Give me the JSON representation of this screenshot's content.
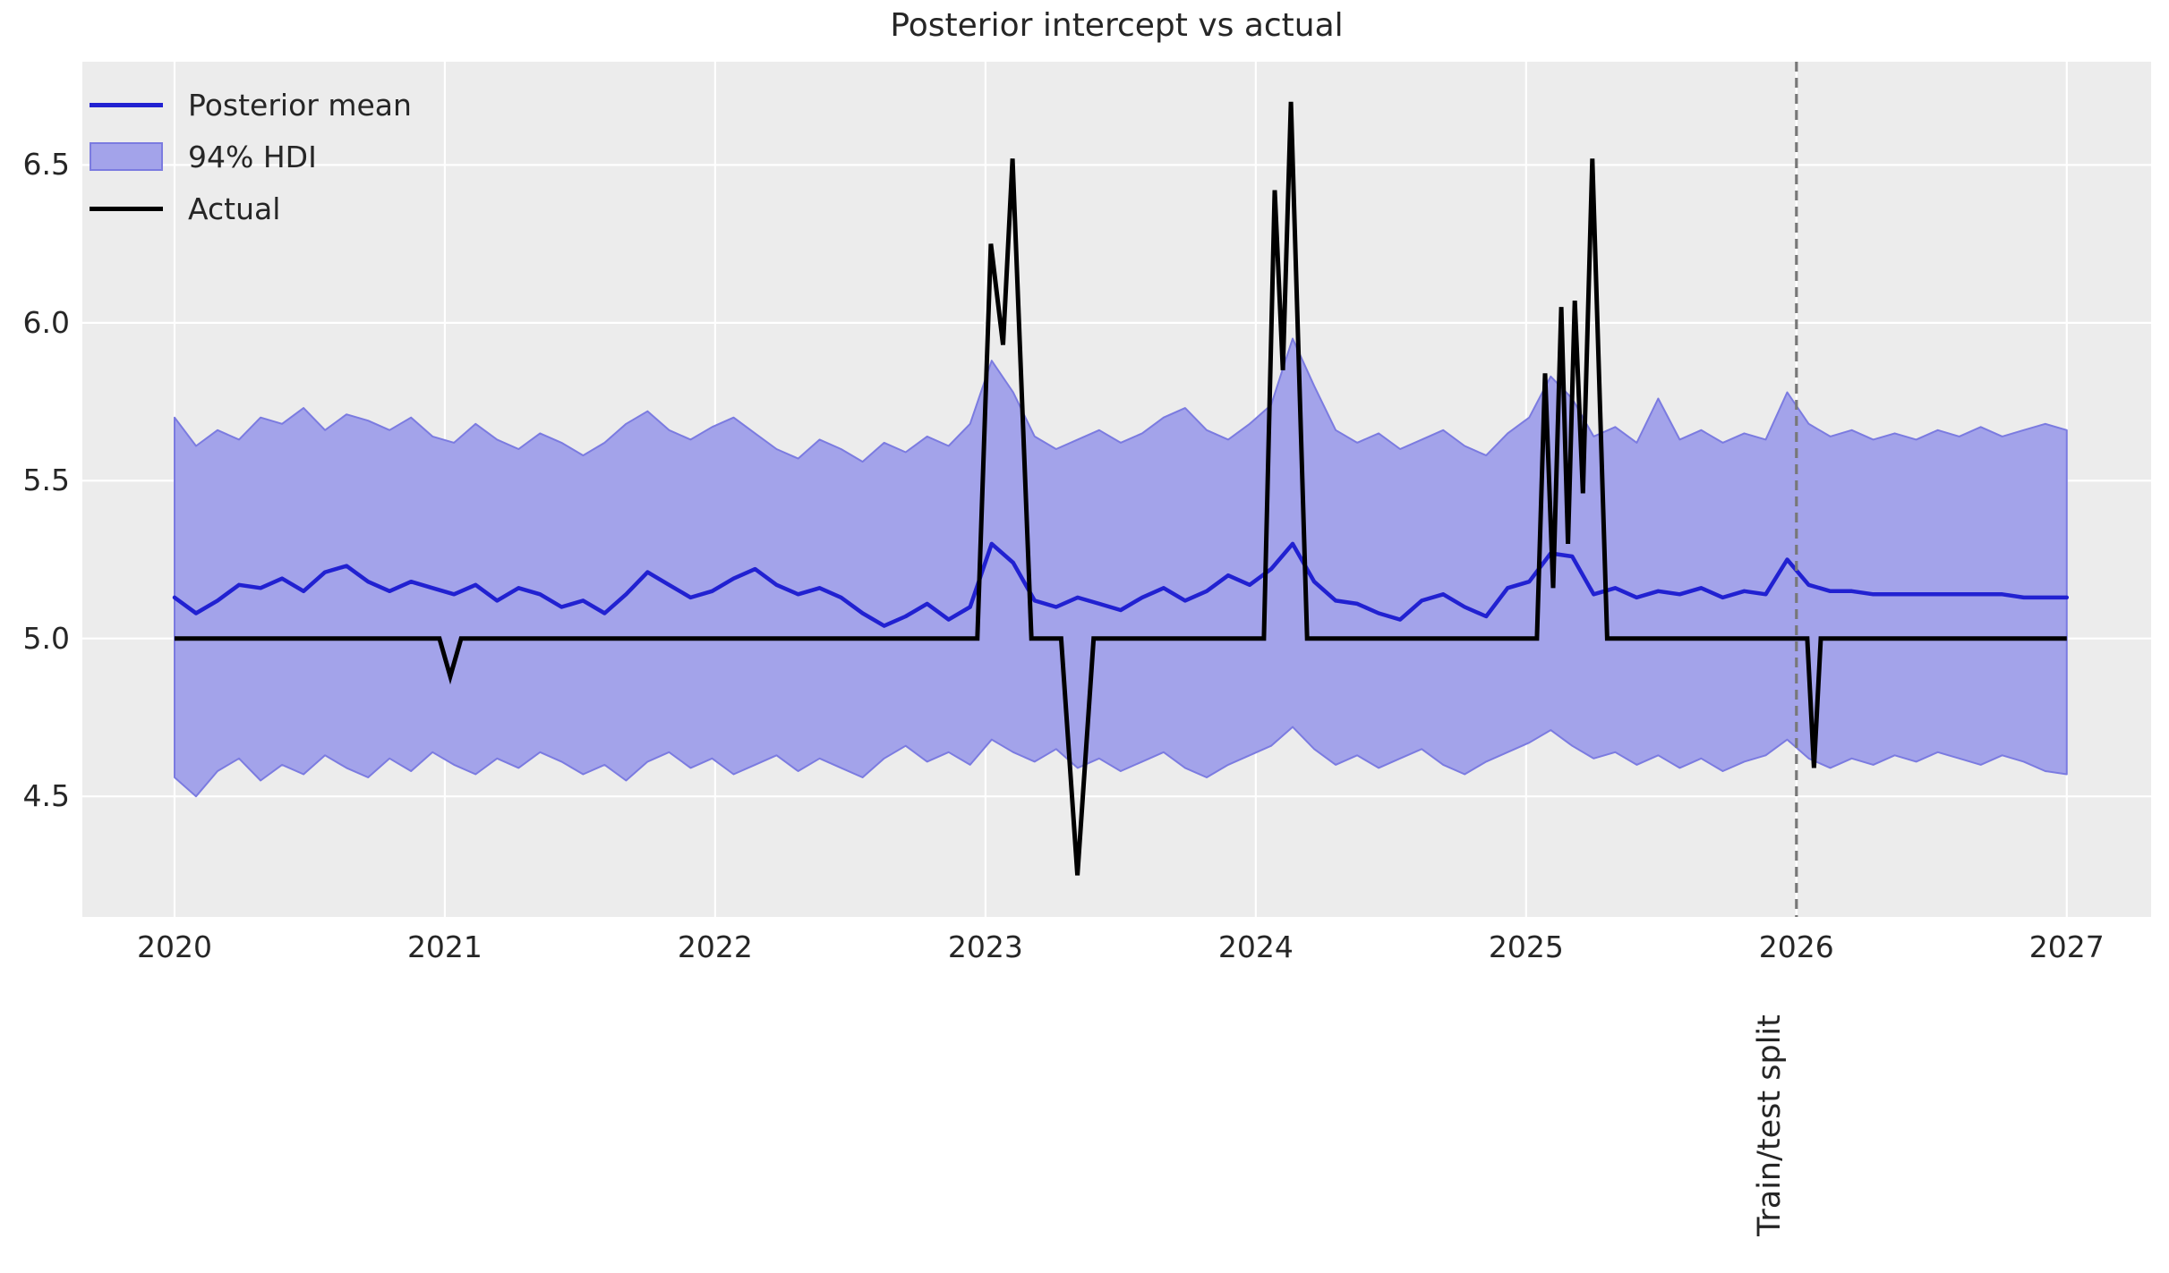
{
  "figure": {
    "title": "Posterior intercept vs actual"
  },
  "legend": {
    "items": [
      {
        "label": "Posterior mean",
        "type": "line",
        "color": "#2121d1"
      },
      {
        "label": "94% HDI",
        "type": "patch",
        "color": "#a3a3ea",
        "edge": "#7b7be0"
      },
      {
        "label": "Actual",
        "type": "line",
        "color": "#000000"
      }
    ]
  },
  "annotations": {
    "split_label": "Train/test split",
    "split_x": 2026.0
  },
  "style": {
    "panel_background": "#ececec",
    "gridline_color": "#ffffff",
    "text_color": "#262626",
    "split_line_color": "#787878"
  },
  "chart_data": {
    "type": "line",
    "title": "Posterior intercept vs actual",
    "xlabel": "",
    "ylabel": "",
    "grid": true,
    "legend_position": "upper left",
    "xlim": [
      2019.659,
      2027.312
    ],
    "ylim": [
      4.118,
      6.827
    ],
    "xticks": [
      2020,
      2021,
      2022,
      2023,
      2024,
      2025,
      2026,
      2027
    ],
    "yticks": [
      4.5,
      5.0,
      5.5,
      6.0,
      6.5
    ],
    "ytick_labels": [
      "4.5",
      "5.0",
      "5.5",
      "6.0",
      "6.5"
    ],
    "xtick_labels": [
      "2020",
      "2021",
      "2022",
      "2023",
      "2024",
      "2025",
      "2026",
      "2027"
    ],
    "series": [
      {
        "name": "Posterior mean",
        "kind": "line",
        "color": "#2121d1",
        "width": 4.5,
        "x_start": 2020.0,
        "x_end": 2027.0,
        "values": [
          5.13,
          5.08,
          5.12,
          5.17,
          5.16,
          5.19,
          5.15,
          5.21,
          5.23,
          5.18,
          5.15,
          5.18,
          5.16,
          5.14,
          5.17,
          5.12,
          5.16,
          5.14,
          5.1,
          5.12,
          5.08,
          5.14,
          5.21,
          5.17,
          5.13,
          5.15,
          5.19,
          5.22,
          5.17,
          5.14,
          5.16,
          5.13,
          5.08,
          5.04,
          5.07,
          5.11,
          5.06,
          5.1,
          5.3,
          5.24,
          5.12,
          5.1,
          5.13,
          5.11,
          5.09,
          5.13,
          5.16,
          5.12,
          5.15,
          5.2,
          5.17,
          5.22,
          5.3,
          5.18,
          5.12,
          5.11,
          5.08,
          5.06,
          5.12,
          5.14,
          5.1,
          5.07,
          5.16,
          5.18,
          5.27,
          5.26,
          5.14,
          5.16,
          5.13,
          5.15,
          5.14,
          5.16,
          5.13,
          5.15,
          5.14,
          5.25,
          5.17,
          5.15,
          5.15,
          5.14,
          5.14,
          5.14,
          5.14,
          5.14,
          5.14,
          5.14,
          5.13,
          5.13,
          5.13
        ]
      },
      {
        "name": "94% HDI upper",
        "kind": "band-upper",
        "color": "#a3a3ea",
        "edge": "#7b7be0",
        "x_start": 2020.0,
        "x_end": 2027.0,
        "values": [
          5.7,
          5.61,
          5.66,
          5.63,
          5.7,
          5.68,
          5.73,
          5.66,
          5.71,
          5.69,
          5.66,
          5.7,
          5.64,
          5.62,
          5.68,
          5.63,
          5.6,
          5.65,
          5.62,
          5.58,
          5.62,
          5.68,
          5.72,
          5.66,
          5.63,
          5.67,
          5.7,
          5.65,
          5.6,
          5.57,
          5.63,
          5.6,
          5.56,
          5.62,
          5.59,
          5.64,
          5.61,
          5.68,
          5.88,
          5.78,
          5.64,
          5.6,
          5.63,
          5.66,
          5.62,
          5.65,
          5.7,
          5.73,
          5.66,
          5.63,
          5.68,
          5.74,
          5.95,
          5.8,
          5.66,
          5.62,
          5.65,
          5.6,
          5.63,
          5.66,
          5.61,
          5.58,
          5.65,
          5.7,
          5.83,
          5.76,
          5.64,
          5.67,
          5.62,
          5.76,
          5.63,
          5.66,
          5.62,
          5.65,
          5.63,
          5.78,
          5.68,
          5.64,
          5.66,
          5.63,
          5.65,
          5.63,
          5.66,
          5.64,
          5.67,
          5.64,
          5.66,
          5.68,
          5.66
        ]
      },
      {
        "name": "94% HDI lower",
        "kind": "band-lower",
        "color": "#a3a3ea",
        "edge": "#7b7be0",
        "x_start": 2020.0,
        "x_end": 2027.0,
        "values": [
          4.56,
          4.5,
          4.58,
          4.62,
          4.55,
          4.6,
          4.57,
          4.63,
          4.59,
          4.56,
          4.62,
          4.58,
          4.64,
          4.6,
          4.57,
          4.62,
          4.59,
          4.64,
          4.61,
          4.57,
          4.6,
          4.55,
          4.61,
          4.64,
          4.59,
          4.62,
          4.57,
          4.6,
          4.63,
          4.58,
          4.62,
          4.59,
          4.56,
          4.62,
          4.66,
          4.61,
          4.64,
          4.6,
          4.68,
          4.64,
          4.61,
          4.65,
          4.59,
          4.62,
          4.58,
          4.61,
          4.64,
          4.59,
          4.56,
          4.6,
          4.63,
          4.66,
          4.72,
          4.65,
          4.6,
          4.63,
          4.59,
          4.62,
          4.65,
          4.6,
          4.57,
          4.61,
          4.64,
          4.67,
          4.71,
          4.66,
          4.62,
          4.64,
          4.6,
          4.63,
          4.59,
          4.62,
          4.58,
          4.61,
          4.63,
          4.68,
          4.62,
          4.59,
          4.62,
          4.6,
          4.63,
          4.61,
          4.64,
          4.62,
          4.6,
          4.63,
          4.61,
          4.58,
          4.57
        ]
      },
      {
        "name": "Actual",
        "kind": "line-xy",
        "color": "#000000",
        "width": 5,
        "points": [
          [
            2020.0,
            5.0
          ],
          [
            2020.98,
            5.0
          ],
          [
            2021.02,
            4.88
          ],
          [
            2021.06,
            5.0
          ],
          [
            2022.97,
            5.0
          ],
          [
            2023.02,
            6.25
          ],
          [
            2023.065,
            5.93
          ],
          [
            2023.1,
            6.52
          ],
          [
            2023.17,
            5.0
          ],
          [
            2023.28,
            5.0
          ],
          [
            2023.34,
            4.25
          ],
          [
            2023.4,
            5.0
          ],
          [
            2024.03,
            5.0
          ],
          [
            2024.07,
            6.42
          ],
          [
            2024.1,
            5.85
          ],
          [
            2024.13,
            6.7
          ],
          [
            2024.19,
            5.0
          ],
          [
            2025.04,
            5.0
          ],
          [
            2025.07,
            5.84
          ],
          [
            2025.1,
            5.16
          ],
          [
            2025.13,
            6.05
          ],
          [
            2025.155,
            5.3
          ],
          [
            2025.18,
            6.07
          ],
          [
            2025.21,
            5.46
          ],
          [
            2025.245,
            6.52
          ],
          [
            2025.3,
            5.0
          ],
          [
            2026.04,
            5.0
          ],
          [
            2026.065,
            4.59
          ],
          [
            2026.09,
            5.0
          ],
          [
            2027.0,
            5.0
          ]
        ]
      }
    ]
  }
}
